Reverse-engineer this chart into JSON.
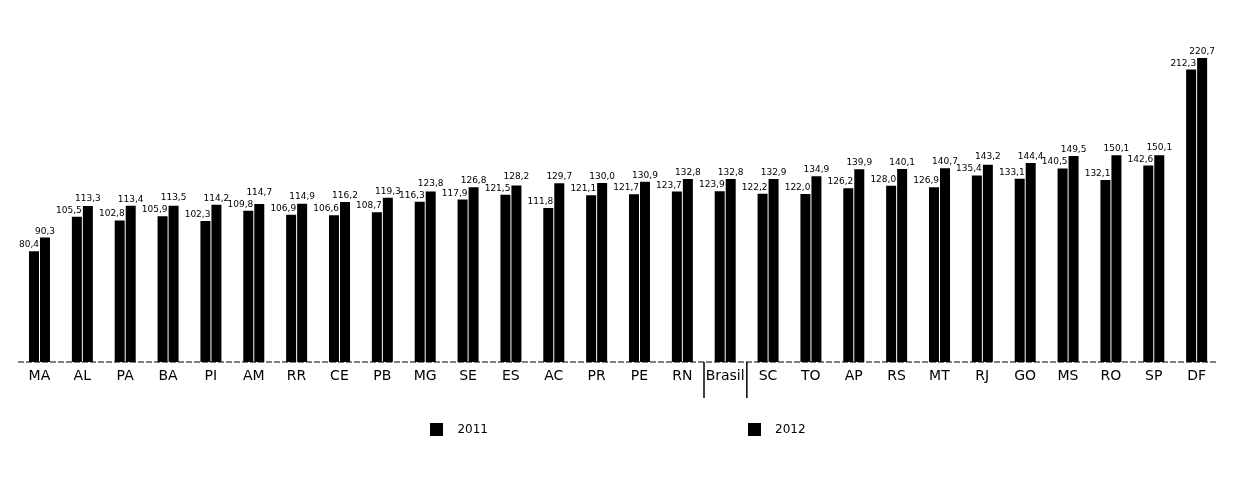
{
  "chart_data": {
    "type": "bar",
    "categories": [
      "MA",
      "AL",
      "PA",
      "BA",
      "PI",
      "AM",
      "RR",
      "CE",
      "PB",
      "MG",
      "SE",
      "ES",
      "AC",
      "PR",
      "PE",
      "RN",
      "Brasil",
      "SC",
      "TO",
      "AP",
      "RS",
      "MT",
      "RJ",
      "GO",
      "MS",
      "RO",
      "SP",
      "DF"
    ],
    "series": [
      {
        "name": "2011",
        "color": "#000000",
        "values": [
          80.4,
          105.5,
          102.8,
          105.9,
          102.3,
          109.8,
          106.9,
          106.6,
          108.7,
          116.3,
          117.9,
          121.5,
          111.8,
          121.1,
          121.7,
          123.7,
          123.9,
          122.2,
          122.0,
          126.2,
          128.0,
          126.9,
          135.4,
          133.1,
          140.5,
          132.1,
          142.6,
          212.3
        ],
        "value_labels": [
          "80,4",
          "105,5",
          "102,8",
          "105,9",
          "102,3",
          "109,8",
          "106,9",
          "106,6",
          "108,7",
          "116,3",
          "117,9",
          "121,5",
          "111,8",
          "121,1",
          "121,7",
          "123,7",
          "123,9",
          "122,2",
          "122,0",
          "126,2",
          "128,0",
          "126,9",
          "135,4",
          "133,1",
          "140,5",
          "132,1",
          "142,6",
          "212,3"
        ]
      },
      {
        "name": "2012",
        "color": "#000000",
        "values": [
          90.3,
          113.3,
          113.4,
          113.5,
          114.2,
          114.7,
          114.9,
          116.2,
          119.3,
          123.8,
          126.8,
          128.2,
          129.7,
          130.0,
          130.9,
          132.8,
          132.8,
          132.9,
          134.9,
          139.9,
          140.1,
          140.7,
          143.2,
          144.4,
          149.5,
          150.1,
          150.1,
          220.7
        ],
        "value_labels": [
          "90,3",
          "113,3",
          "113,4",
          "113,5",
          "114,2",
          "114,7",
          "114,9",
          "116,2",
          "119,3",
          "123,8",
          "126,8",
          "128,2",
          "129,7",
          "130,0",
          "130,9",
          "132,8",
          "132,8",
          "132,9",
          "134,9",
          "139,9",
          "140,1",
          "140,7",
          "143,2",
          "144,4",
          "149,5",
          "150,1",
          "150,1",
          "220,7"
        ]
      }
    ],
    "legend": "bottom"
  }
}
